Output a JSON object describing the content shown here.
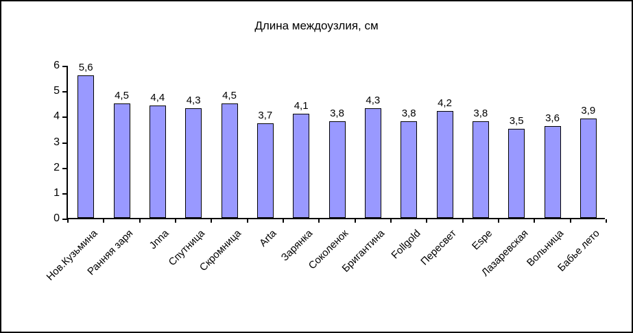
{
  "chart_data": {
    "type": "bar",
    "title": "Длина междоузлия, см",
    "categories": [
      "Нов.Кузьмина",
      "Ранняя заря",
      "Jnna",
      "Спутница",
      "Скромница",
      "Arta",
      "Зарянка",
      "Соколенок",
      "Бригантина",
      "Follgold",
      "Пересвет",
      "Espe",
      "Лазаревская",
      "Вольница",
      "Бабье лето"
    ],
    "values": [
      5.6,
      4.5,
      4.4,
      4.3,
      4.5,
      3.7,
      4.1,
      3.8,
      4.3,
      3.8,
      4.2,
      3.8,
      3.5,
      3.6,
      3.9
    ],
    "value_labels": [
      "5,6",
      "4,5",
      "4,4",
      "4,3",
      "4,5",
      "3,7",
      "4,1",
      "3,8",
      "4,3",
      "3,8",
      "4,2",
      "3,8",
      "3,5",
      "3,6",
      "3,9"
    ],
    "xlabel": "",
    "ylabel": "",
    "ylim": [
      0,
      6
    ],
    "yticks": [
      0,
      1,
      2,
      3,
      4,
      5,
      6
    ],
    "grid": false,
    "legend": "none",
    "bar_color": "#9999ff",
    "bar_border_color": "#000000",
    "axis_color": "#000000",
    "background_color": "#ffffff"
  }
}
